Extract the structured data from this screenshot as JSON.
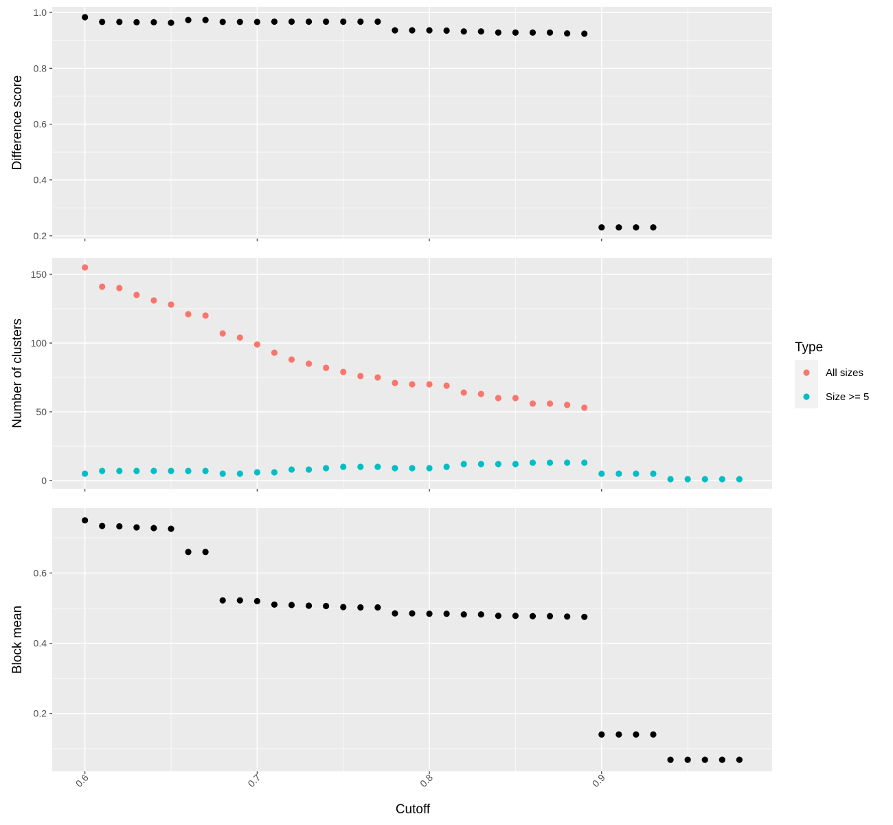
{
  "chart_data": {
    "type": "scatter",
    "xlabel": "Cutoff",
    "xlim": [
      0.581,
      0.999
    ],
    "x_ticks": [
      "0.6",
      "0.7",
      "0.8",
      "0.9"
    ],
    "panels": [
      {
        "ylabel": "Difference score",
        "ylim": [
          0.19,
          1.02
        ],
        "y_ticks": [
          "0.2",
          "0.4",
          "0.6",
          "0.8",
          "1.0"
        ],
        "series": [
          {
            "color": "#000000",
            "x": [
              0.6,
              0.61,
              0.62,
              0.63,
              0.64,
              0.65,
              0.66,
              0.67,
              0.68,
              0.69,
              0.7,
              0.71,
              0.72,
              0.73,
              0.74,
              0.75,
              0.76,
              0.77,
              0.78,
              0.79,
              0.8,
              0.81,
              0.82,
              0.83,
              0.84,
              0.85,
              0.86,
              0.87,
              0.88,
              0.89,
              0.9,
              0.91,
              0.92,
              0.93
            ],
            "y": [
              0.983,
              0.966,
              0.966,
              0.965,
              0.965,
              0.963,
              0.973,
              0.973,
              0.966,
              0.966,
              0.966,
              0.967,
              0.967,
              0.967,
              0.967,
              0.967,
              0.967,
              0.967,
              0.936,
              0.936,
              0.936,
              0.935,
              0.932,
              0.932,
              0.928,
              0.928,
              0.928,
              0.928,
              0.925,
              0.924,
              0.23,
              0.23,
              0.23,
              0.23
            ]
          }
        ]
      },
      {
        "ylabel": "Number of clusters",
        "ylim": [
          -6,
          162
        ],
        "y_ticks": [
          "0",
          "50",
          "100",
          "150"
        ],
        "series": [
          {
            "name": "All sizes",
            "color": "#F8766D",
            "x": [
              0.6,
              0.61,
              0.62,
              0.63,
              0.64,
              0.65,
              0.66,
              0.67,
              0.68,
              0.69,
              0.7,
              0.71,
              0.72,
              0.73,
              0.74,
              0.75,
              0.76,
              0.77,
              0.78,
              0.79,
              0.8,
              0.81,
              0.82,
              0.83,
              0.84,
              0.85,
              0.86,
              0.87,
              0.88,
              0.89
            ],
            "y": [
              155,
              141,
              140,
              135,
              131,
              128,
              121,
              120,
              107,
              104,
              99,
              93,
              88,
              85,
              82,
              79,
              76,
              75,
              71,
              70,
              70,
              69,
              64,
              63,
              60,
              60,
              56,
              56,
              55,
              53
            ]
          },
          {
            "name": "Size >= 5",
            "color": "#00BFC4",
            "x": [
              0.6,
              0.61,
              0.62,
              0.63,
              0.64,
              0.65,
              0.66,
              0.67,
              0.68,
              0.69,
              0.7,
              0.71,
              0.72,
              0.73,
              0.74,
              0.75,
              0.76,
              0.77,
              0.78,
              0.79,
              0.8,
              0.81,
              0.82,
              0.83,
              0.84,
              0.85,
              0.86,
              0.87,
              0.88,
              0.89,
              0.9,
              0.91,
              0.92,
              0.93,
              0.94,
              0.95,
              0.96,
              0.97,
              0.98
            ],
            "y": [
              5,
              7,
              7,
              7,
              7,
              7,
              7,
              7,
              5,
              5,
              6,
              6,
              8,
              8,
              9,
              10,
              10,
              10,
              9,
              9,
              9,
              10,
              12,
              12,
              12,
              12,
              13,
              13,
              13,
              13,
              5,
              5,
              5,
              5,
              1,
              1,
              1,
              1,
              1
            ]
          }
        ]
      },
      {
        "ylabel": "Block mean",
        "ylim": [
          0.035,
          0.785
        ],
        "y_ticks": [
          "0.2",
          "0.4",
          "0.6"
        ],
        "series": [
          {
            "color": "#000000",
            "x": [
              0.6,
              0.61,
              0.62,
              0.63,
              0.64,
              0.65,
              0.66,
              0.67,
              0.68,
              0.69,
              0.7,
              0.71,
              0.72,
              0.73,
              0.74,
              0.75,
              0.76,
              0.77,
              0.78,
              0.79,
              0.8,
              0.81,
              0.82,
              0.83,
              0.84,
              0.85,
              0.86,
              0.87,
              0.88,
              0.89,
              0.9,
              0.91,
              0.92,
              0.93,
              0.94,
              0.95,
              0.96,
              0.97,
              0.98
            ],
            "y": [
              0.75,
              0.734,
              0.733,
              0.73,
              0.728,
              0.726,
              0.66,
              0.66,
              0.522,
              0.522,
              0.52,
              0.51,
              0.509,
              0.507,
              0.506,
              0.503,
              0.502,
              0.502,
              0.485,
              0.485,
              0.484,
              0.484,
              0.482,
              0.482,
              0.478,
              0.478,
              0.477,
              0.477,
              0.476,
              0.475,
              0.14,
              0.14,
              0.14,
              0.14,
              0.068,
              0.068,
              0.068,
              0.068,
              0.068
            ]
          }
        ]
      }
    ],
    "legend": {
      "title": "Type",
      "placement": "right",
      "items": [
        {
          "label": "All sizes",
          "color": "#F8766D"
        },
        {
          "label": "Size >= 5",
          "color": "#00BFC4"
        }
      ]
    }
  }
}
